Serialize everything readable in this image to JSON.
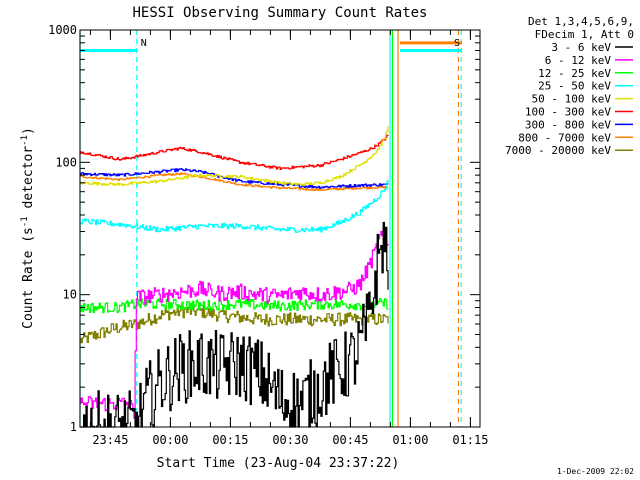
{
  "chart_data": {
    "type": "line",
    "title": "HESSI Observing Summary Count Rates",
    "xlabel": "Start Time (23-Aug-04 23:37:22)",
    "ylabel": "Count Rate (s-1 detector-1)",
    "ylabel_parts": {
      "pre": "Count Rate (s",
      "sup1": "-1",
      "mid": " detector",
      "sup2": "-1",
      "post": ")"
    },
    "y_scale": "log",
    "ylim": [
      1,
      1000
    ],
    "y_ticks": [
      {
        "value": 1,
        "label": "1"
      },
      {
        "value": 10,
        "label": "10"
      },
      {
        "value": 100,
        "label": "100"
      },
      {
        "value": 1000,
        "label": "1000"
      }
    ],
    "x_units": "minutes after 23:37:22",
    "xlim": [
      0,
      100
    ],
    "x_ticks": [
      {
        "value": 7.6,
        "label": "23:45"
      },
      {
        "value": 22.6,
        "label": "00:00"
      },
      {
        "value": 37.6,
        "label": "00:15"
      },
      {
        "value": 52.6,
        "label": "00:30"
      },
      {
        "value": 67.6,
        "label": "00:45"
      },
      {
        "value": 82.6,
        "label": "01:00"
      },
      {
        "value": 97.6,
        "label": "01:15"
      }
    ],
    "legend": {
      "position": "right",
      "header": [
        "Det 1,3,4,5,6,9,",
        "FDecim 1, Att 0"
      ]
    },
    "series": [
      {
        "name": "3 - 6 keV",
        "color": "#000000",
        "noise": 0.55,
        "x": [
          0,
          14,
          16,
          20,
          25,
          30,
          35,
          40,
          45,
          50,
          55,
          60,
          63,
          66,
          69,
          72,
          74,
          75.5,
          76.5,
          77
        ],
        "y": [
          1,
          1,
          1.5,
          2.2,
          2.8,
          3,
          2.8,
          3,
          2.5,
          1.6,
          1.5,
          2,
          2.5,
          2.8,
          3.5,
          6,
          15,
          25,
          22,
          18
        ]
      },
      {
        "name": "6 - 12 keV",
        "color": "#ff00ff",
        "noise": 0.12,
        "x": [
          0,
          12,
          13.5,
          14,
          20,
          25,
          30,
          35,
          40,
          45,
          50,
          55,
          60,
          65,
          68,
          70,
          72,
          74,
          75,
          76,
          77
        ],
        "y": [
          1.5,
          1.5,
          1.3,
          9.5,
          10,
          10.5,
          11,
          10.2,
          10.5,
          10,
          9.8,
          10.5,
          10,
          10.5,
          11,
          12,
          16,
          22,
          27,
          28,
          23
        ]
      },
      {
        "name": "12 - 25 keV",
        "color": "#00ff00",
        "noise": 0.08,
        "x": [
          0,
          10,
          14,
          20,
          30,
          40,
          50,
          60,
          70,
          74,
          76,
          77
        ],
        "y": [
          8,
          8,
          8.5,
          8.5,
          8.3,
          8.5,
          8.2,
          8.5,
          8.4,
          8.5,
          8.6,
          8.5
        ]
      },
      {
        "name": "25 - 50 keV",
        "color": "#00ffff",
        "noise": 0.04,
        "x": [
          0,
          10,
          20,
          30,
          40,
          50,
          60,
          65,
          70,
          73,
          75,
          76.5,
          77
        ],
        "y": [
          36,
          34,
          31,
          33,
          33,
          31,
          31,
          35,
          42,
          50,
          57,
          65,
          75
        ]
      },
      {
        "name": "50 - 100 keV",
        "color": "#e0e000",
        "noise": 0.02,
        "x": [
          0,
          10,
          20,
          30,
          40,
          50,
          55,
          60,
          65,
          68,
          71,
          74,
          76,
          77
        ],
        "y": [
          70,
          68,
          72,
          80,
          78,
          70,
          68,
          70,
          78,
          88,
          100,
          120,
          150,
          185
        ]
      },
      {
        "name": "100 - 300 keV",
        "color": "#ff0000",
        "noise": 0.02,
        "x": [
          0,
          10,
          15,
          20,
          25,
          30,
          40,
          50,
          60,
          65,
          70,
          73,
          75,
          77
        ],
        "y": [
          120,
          105,
          112,
          120,
          128,
          120,
          100,
          90,
          95,
          105,
          118,
          128,
          140,
          160
        ]
      },
      {
        "name": "300 - 800 keV",
        "color": "#0000ff",
        "noise": 0.02,
        "x": [
          0,
          10,
          20,
          25,
          30,
          40,
          50,
          60,
          70,
          77
        ],
        "y": [
          82,
          80,
          85,
          88,
          85,
          72,
          68,
          65,
          67,
          68
        ]
      },
      {
        "name": "800 - 7000 keV",
        "color": "#ff8000",
        "noise": 0.015,
        "x": [
          0,
          10,
          20,
          25,
          30,
          40,
          50,
          60,
          70,
          77
        ],
        "y": [
          78,
          74,
          80,
          82,
          78,
          68,
          64,
          62,
          64,
          65
        ]
      },
      {
        "name": "7000 - 20000 keV",
        "color": "#808000",
        "noise": 0.1,
        "x": [
          0,
          8,
          14,
          20,
          25,
          30,
          35,
          45,
          55,
          65,
          70,
          75,
          77
        ],
        "y": [
          4.5,
          5.5,
          6,
          7,
          7.5,
          7.5,
          7,
          6.5,
          6.5,
          6.5,
          6.5,
          6.5,
          6.5
        ]
      }
    ],
    "flag_lines": [
      {
        "label": "N",
        "color": "#00ffff",
        "level": 700,
        "x_start": 0,
        "x_end": 14.2
      },
      {
        "label": "S",
        "color": "#ff8000",
        "level": 800,
        "x_start": 80,
        "x_end": 95.5
      },
      {
        "label": "",
        "color": "#00ffff",
        "level": 700,
        "x_start": 80,
        "x_end": 95.5
      }
    ],
    "event_lines": [
      {
        "x": 0,
        "color": "#00ffff",
        "style": "solid"
      },
      {
        "x": 14.2,
        "color": "#00ffff",
        "style": "dashed"
      },
      {
        "x": 77.5,
        "color": "#00ffff",
        "style": "solid"
      },
      {
        "x": 78.1,
        "color": "#00ff00",
        "style": "solid"
      },
      {
        "x": 79.5,
        "color": "#ff8000",
        "style": "solid"
      },
      {
        "x": 94.6,
        "color": "#ff8000",
        "style": "dashed"
      },
      {
        "x": 95.3,
        "color": "#00ffff",
        "style": "dashed"
      }
    ]
  },
  "footer": {
    "timestamp": "1-Dec-2009 22:02"
  }
}
